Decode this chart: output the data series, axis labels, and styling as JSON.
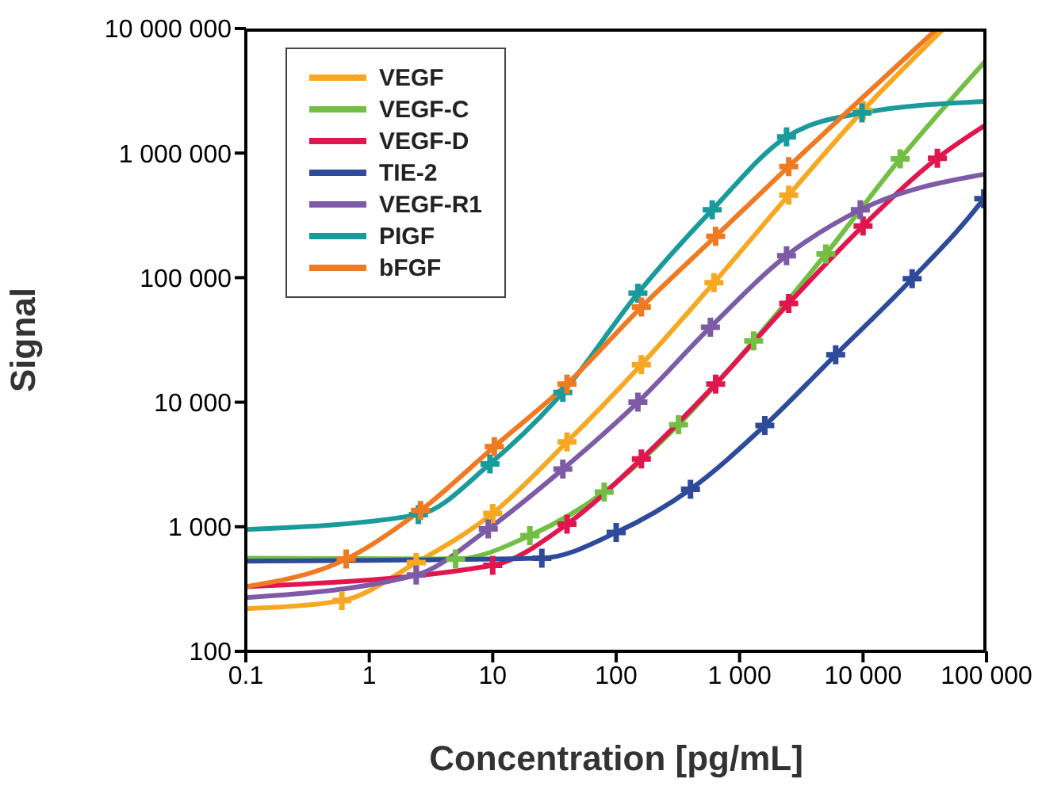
{
  "chart_data": {
    "type": "line",
    "xlabel": "Concentration  [pg/mL]",
    "ylabel": "Signal",
    "log": "xy",
    "grid": false,
    "legend": "top left",
    "line_style": "solid",
    "xlim": [
      0.1,
      100000
    ],
    "xticks": [
      0.1,
      1,
      10,
      100,
      {
        "value": 1000,
        "label": "1 000"
      },
      {
        "value": 10000,
        "label": "10 000"
      },
      {
        "value": 100000,
        "label": "100 000"
      }
    ],
    "ylim": [
      100,
      10000000
    ],
    "yticks": [
      100,
      {
        "value": 1000,
        "label": "1 000"
      },
      {
        "value": 10000,
        "label": "10 000"
      },
      {
        "value": 100000,
        "label": "100 000"
      },
      {
        "value": 1000000,
        "label": "1 000 000"
      },
      {
        "value": 10000000,
        "label": "10 000 000"
      }
    ],
    "series": [
      {
        "name": "VEGF",
        "type": "line",
        "marker": "none",
        "color": "#f7a823",
        "x": [
          0.1,
          0.6,
          2.4,
          10,
          40,
          160,
          620,
          2500,
          10000,
          45000
        ],
        "values": [
          220,
          255,
          515,
          1280,
          4800,
          20000,
          91000,
          460000,
          2200000,
          10000000
        ]
      },
      {
        "name": "VEGF-C",
        "type": "line",
        "marker": "none",
        "color": "#72bf44",
        "x": [
          0.1,
          5,
          20,
          80,
          320,
          1300,
          5000,
          20000,
          100000
        ],
        "values": [
          560,
          550,
          850,
          1900,
          6600,
          31000,
          155000,
          900000,
          5600000
        ]
      },
      {
        "name": "VEGF-D",
        "type": "line",
        "marker": "none",
        "color": "#e0174f",
        "x": [
          0.1,
          10,
          40,
          160,
          640,
          2500,
          10000,
          40000,
          100000
        ],
        "values": [
          330,
          490,
          1050,
          3500,
          14000,
          62000,
          260000,
          910000,
          1700000
        ]
      },
      {
        "name": "TIE-2",
        "type": "line",
        "marker": "none",
        "color": "#2e4b9b",
        "x": [
          0.1,
          25,
          100,
          400,
          1600,
          6000,
          25000,
          95000,
          100000
        ],
        "values": [
          530,
          560,
          900,
          2000,
          6500,
          24000,
          98000,
          430000,
          460000
        ]
      },
      {
        "name": "VEGF-R1",
        "type": "line",
        "marker": "none",
        "color": "#7d5ba6",
        "x": [
          0.1,
          2.4,
          9.2,
          37,
          150,
          580,
          2400,
          9500,
          100000
        ],
        "values": [
          270,
          410,
          960,
          2900,
          10000,
          40000,
          150000,
          350000,
          680000
        ]
      },
      {
        "name": "PIGF",
        "type": "line",
        "marker": "none",
        "color": "#1a9a9a",
        "x": [
          0.1,
          2.5,
          9.5,
          37,
          150,
          600,
          2400,
          9800,
          100000
        ],
        "values": [
          950,
          1250,
          3200,
          12000,
          75000,
          350000,
          1350000,
          2100000,
          2600000
        ]
      },
      {
        "name": "bFGF",
        "type": "line",
        "marker": "none",
        "color": "#ef7a22",
        "x": [
          0.1,
          0.65,
          2.6,
          10.3,
          40,
          160,
          640,
          2500,
          40000
        ],
        "values": [
          330,
          550,
          1350,
          4400,
          14000,
          58000,
          215000,
          780000,
          10000000
        ]
      },
      {
        "type": "scatter",
        "marker": "cross",
        "color": "#f7a823",
        "x": [
          0.6,
          2.4,
          10,
          40,
          160,
          620,
          2500,
          10000
        ],
        "values": [
          255,
          515,
          1280,
          4800,
          20000,
          91000,
          460000,
          2200000
        ]
      },
      {
        "type": "scatter",
        "marker": "cross",
        "color": "#72bf44",
        "x": [
          5,
          20,
          80,
          320,
          1300,
          5000,
          20000
        ],
        "values": [
          550,
          850,
          1900,
          6600,
          31000,
          155000,
          900000
        ]
      },
      {
        "type": "scatter",
        "marker": "cross",
        "color": "#e0174f",
        "x": [
          10,
          40,
          160,
          640,
          2500,
          10000,
          40000
        ],
        "values": [
          490,
          1050,
          3500,
          14000,
          62000,
          260000,
          910000
        ]
      },
      {
        "type": "scatter",
        "marker": "cross",
        "color": "#2e4b9b",
        "x": [
          25,
          100,
          400,
          1600,
          6000,
          25000,
          95000
        ],
        "values": [
          560,
          900,
          2000,
          6500,
          24000,
          98000,
          430000
        ]
      },
      {
        "type": "scatter",
        "marker": "cross",
        "color": "#7d5ba6",
        "x": [
          2.4,
          9.2,
          37,
          150,
          580,
          2400,
          9500
        ],
        "values": [
          410,
          960,
          2900,
          10000,
          40000,
          150000,
          350000
        ]
      },
      {
        "type": "scatter",
        "marker": "cross",
        "color": "#1a9a9a",
        "x": [
          2.5,
          9.5,
          37,
          150,
          600,
          2400,
          9800
        ],
        "values": [
          1250,
          3200,
          12000,
          75000,
          350000,
          1350000,
          2100000
        ]
      },
      {
        "type": "scatter",
        "marker": "cross",
        "color": "#ef7a22",
        "x": [
          0.65,
          2.6,
          10.3,
          40,
          160,
          640,
          2500
        ],
        "values": [
          550,
          1350,
          4400,
          14000,
          58000,
          215000,
          780000
        ]
      }
    ]
  }
}
